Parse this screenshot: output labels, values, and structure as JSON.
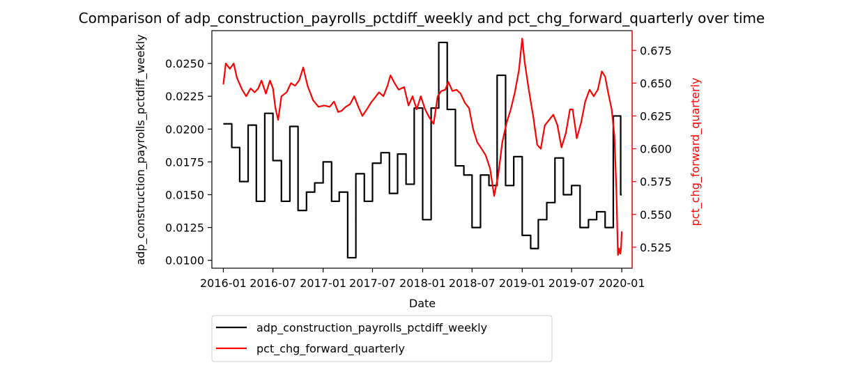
{
  "chart_data": {
    "type": "line",
    "title": "Comparison of adp_construction_payrolls_pctdiff_weekly and pct_chg_forward_quarterly over time",
    "xlabel": "Date",
    "ylabel_left": "adp_construction_payrolls_pctdiff_weekly",
    "ylabel_right": "pct_chg_forward_quarterly",
    "x_ticks": [
      "2016-01",
      "2016-07",
      "2017-01",
      "2017-07",
      "2018-01",
      "2018-07",
      "2019-01",
      "2019-07",
      "2020-01"
    ],
    "y_left_ticks": [
      "0.0100",
      "0.0125",
      "0.0150",
      "0.0175",
      "0.0200",
      "0.0225",
      "0.0250"
    ],
    "y_right_ticks": [
      "0.525",
      "0.550",
      "0.575",
      "0.600",
      "0.625",
      "0.650",
      "0.675"
    ],
    "ylim_left": [
      0.0094,
      0.0275
    ],
    "ylim_right": [
      0.509,
      0.69
    ],
    "xlim": [
      "2015-11-20",
      "2020-02-08"
    ],
    "legend_position": "below",
    "series": [
      {
        "name": "adp_construction_payrolls_pctdiff_weekly",
        "color": "#000000",
        "axis": "left",
        "points": [
          [
            "2016-01-01",
            0.0204
          ],
          [
            "2016-02-01",
            0.0204
          ],
          [
            "2016-02-01",
            0.0186
          ],
          [
            "2016-03-01",
            0.0186
          ],
          [
            "2016-03-01",
            0.016
          ],
          [
            "2016-04-01",
            0.016
          ],
          [
            "2016-04-01",
            0.0203
          ],
          [
            "2016-05-01",
            0.0203
          ],
          [
            "2016-05-01",
            0.0145
          ],
          [
            "2016-06-01",
            0.0145
          ],
          [
            "2016-06-01",
            0.0212
          ],
          [
            "2016-07-01",
            0.0212
          ],
          [
            "2016-07-01",
            0.0176
          ],
          [
            "2016-08-01",
            0.0176
          ],
          [
            "2016-08-01",
            0.0145
          ],
          [
            "2016-09-01",
            0.0145
          ],
          [
            "2016-09-01",
            0.0202
          ],
          [
            "2016-10-01",
            0.0202
          ],
          [
            "2016-10-01",
            0.0138
          ],
          [
            "2016-11-01",
            0.0138
          ],
          [
            "2016-11-01",
            0.0152
          ],
          [
            "2016-12-01",
            0.0152
          ],
          [
            "2016-12-01",
            0.0159
          ],
          [
            "2017-01-01",
            0.0159
          ],
          [
            "2017-01-01",
            0.0175
          ],
          [
            "2017-02-01",
            0.0175
          ],
          [
            "2017-02-01",
            0.0145
          ],
          [
            "2017-03-01",
            0.0145
          ],
          [
            "2017-03-01",
            0.0152
          ],
          [
            "2017-04-01",
            0.0152
          ],
          [
            "2017-04-01",
            0.0102
          ],
          [
            "2017-05-01",
            0.0102
          ],
          [
            "2017-05-01",
            0.0166
          ],
          [
            "2017-06-01",
            0.0166
          ],
          [
            "2017-06-01",
            0.0145
          ],
          [
            "2017-07-01",
            0.0145
          ],
          [
            "2017-07-01",
            0.0174
          ],
          [
            "2017-08-01",
            0.0174
          ],
          [
            "2017-08-01",
            0.0182
          ],
          [
            "2017-09-01",
            0.0182
          ],
          [
            "2017-09-01",
            0.0151
          ],
          [
            "2017-10-01",
            0.0151
          ],
          [
            "2017-10-01",
            0.0181
          ],
          [
            "2017-11-01",
            0.0181
          ],
          [
            "2017-11-01",
            0.0158
          ],
          [
            "2017-12-01",
            0.0158
          ],
          [
            "2017-12-01",
            0.0216
          ],
          [
            "2018-01-01",
            0.0216
          ],
          [
            "2018-01-01",
            0.0131
          ],
          [
            "2018-02-01",
            0.0131
          ],
          [
            "2018-02-01",
            0.0216
          ],
          [
            "2018-03-01",
            0.0216
          ],
          [
            "2018-03-01",
            0.0266
          ],
          [
            "2018-04-01",
            0.0266
          ],
          [
            "2018-04-01",
            0.0215
          ],
          [
            "2018-05-01",
            0.0215
          ],
          [
            "2018-05-01",
            0.0172
          ],
          [
            "2018-06-01",
            0.0172
          ],
          [
            "2018-06-01",
            0.0165
          ],
          [
            "2018-07-01",
            0.0165
          ],
          [
            "2018-07-01",
            0.0125
          ],
          [
            "2018-08-01",
            0.0125
          ],
          [
            "2018-08-01",
            0.0165
          ],
          [
            "2018-09-01",
            0.0165
          ],
          [
            "2018-09-01",
            0.0157
          ],
          [
            "2018-10-01",
            0.0157
          ],
          [
            "2018-10-01",
            0.0241
          ],
          [
            "2018-11-01",
            0.0241
          ],
          [
            "2018-11-01",
            0.0157
          ],
          [
            "2018-12-01",
            0.0157
          ],
          [
            "2018-12-01",
            0.0179
          ],
          [
            "2019-01-01",
            0.0179
          ],
          [
            "2019-01-01",
            0.0119
          ],
          [
            "2019-02-01",
            0.0119
          ],
          [
            "2019-02-01",
            0.0109
          ],
          [
            "2019-03-01",
            0.0109
          ],
          [
            "2019-03-01",
            0.0131
          ],
          [
            "2019-04-01",
            0.0131
          ],
          [
            "2019-04-01",
            0.0144
          ],
          [
            "2019-05-01",
            0.0144
          ],
          [
            "2019-05-01",
            0.0178
          ],
          [
            "2019-06-01",
            0.0178
          ],
          [
            "2019-06-01",
            0.015
          ],
          [
            "2019-07-01",
            0.015
          ],
          [
            "2019-07-01",
            0.0157
          ],
          [
            "2019-08-01",
            0.0157
          ],
          [
            "2019-08-01",
            0.0125
          ],
          [
            "2019-09-01",
            0.0125
          ],
          [
            "2019-09-01",
            0.0131
          ],
          [
            "2019-10-01",
            0.0131
          ],
          [
            "2019-10-01",
            0.0137
          ],
          [
            "2019-11-01",
            0.0137
          ],
          [
            "2019-11-01",
            0.0125
          ],
          [
            "2019-12-01",
            0.0125
          ],
          [
            "2019-12-01",
            0.021
          ],
          [
            "2019-12-28",
            0.021
          ],
          [
            "2019-12-28",
            0.015
          ],
          [
            "2020-01-01",
            0.015
          ]
        ]
      },
      {
        "name": "pct_chg_forward_quarterly",
        "color": "#ff0000",
        "axis": "right",
        "points": [
          [
            "2016-01-01",
            0.649
          ],
          [
            "2016-01-10",
            0.665
          ],
          [
            "2016-01-25",
            0.661
          ],
          [
            "2016-02-08",
            0.665
          ],
          [
            "2016-02-20",
            0.654
          ],
          [
            "2016-03-10",
            0.645
          ],
          [
            "2016-03-25",
            0.64
          ],
          [
            "2016-04-10",
            0.646
          ],
          [
            "2016-04-25",
            0.643
          ],
          [
            "2016-05-08",
            0.646
          ],
          [
            "2016-05-20",
            0.652
          ],
          [
            "2016-06-05",
            0.642
          ],
          [
            "2016-06-20",
            0.652
          ],
          [
            "2016-07-01",
            0.646
          ],
          [
            "2016-07-10",
            0.631
          ],
          [
            "2016-07-20",
            0.622
          ],
          [
            "2016-08-01",
            0.64
          ],
          [
            "2016-08-20",
            0.643
          ],
          [
            "2016-09-05",
            0.65
          ],
          [
            "2016-09-20",
            0.648
          ],
          [
            "2016-10-05",
            0.652
          ],
          [
            "2016-10-20",
            0.662
          ],
          [
            "2016-11-05",
            0.648
          ],
          [
            "2016-11-25",
            0.637
          ],
          [
            "2016-12-15",
            0.632
          ],
          [
            "2017-01-05",
            0.633
          ],
          [
            "2017-01-25",
            0.632
          ],
          [
            "2017-02-10",
            0.636
          ],
          [
            "2017-02-25",
            0.628
          ],
          [
            "2017-03-10",
            0.629
          ],
          [
            "2017-03-25",
            0.632
          ],
          [
            "2017-04-10",
            0.634
          ],
          [
            "2017-04-25",
            0.64
          ],
          [
            "2017-05-10",
            0.632
          ],
          [
            "2017-05-25",
            0.625
          ],
          [
            "2017-06-10",
            0.63
          ],
          [
            "2017-06-25",
            0.635
          ],
          [
            "2017-07-10",
            0.639
          ],
          [
            "2017-07-25",
            0.643
          ],
          [
            "2017-08-10",
            0.64
          ],
          [
            "2017-08-25",
            0.648
          ],
          [
            "2017-09-05",
            0.656
          ],
          [
            "2017-09-20",
            0.65
          ],
          [
            "2017-10-05",
            0.645
          ],
          [
            "2017-10-25",
            0.647
          ],
          [
            "2017-11-10",
            0.633
          ],
          [
            "2017-11-25",
            0.64
          ],
          [
            "2017-12-10",
            0.63
          ],
          [
            "2017-12-25",
            0.64
          ],
          [
            "2018-01-10",
            0.63
          ],
          [
            "2018-01-25",
            0.624
          ],
          [
            "2018-02-10",
            0.619
          ],
          [
            "2018-02-25",
            0.64
          ],
          [
            "2018-03-10",
            0.644
          ],
          [
            "2018-03-25",
            0.645
          ],
          [
            "2018-04-05",
            0.651
          ],
          [
            "2018-04-20",
            0.644
          ],
          [
            "2018-05-05",
            0.645
          ],
          [
            "2018-05-20",
            0.642
          ],
          [
            "2018-06-05",
            0.635
          ],
          [
            "2018-06-20",
            0.631
          ],
          [
            "2018-07-05",
            0.615
          ],
          [
            "2018-07-20",
            0.605
          ],
          [
            "2018-08-05",
            0.6
          ],
          [
            "2018-08-20",
            0.595
          ],
          [
            "2018-09-05",
            0.585
          ],
          [
            "2018-09-20",
            0.564
          ],
          [
            "2018-10-05",
            0.58
          ],
          [
            "2018-10-20",
            0.605
          ],
          [
            "2018-11-05",
            0.62
          ],
          [
            "2018-11-20",
            0.63
          ],
          [
            "2018-12-05",
            0.643
          ],
          [
            "2018-12-20",
            0.66
          ],
          [
            "2019-01-01",
            0.684
          ],
          [
            "2019-01-10",
            0.666
          ],
          [
            "2019-01-25",
            0.645
          ],
          [
            "2019-02-10",
            0.625
          ],
          [
            "2019-02-25",
            0.603
          ],
          [
            "2019-03-10",
            0.6
          ],
          [
            "2019-03-25",
            0.618
          ],
          [
            "2019-04-10",
            0.622
          ],
          [
            "2019-04-25",
            0.626
          ],
          [
            "2019-05-10",
            0.618
          ],
          [
            "2019-05-25",
            0.601
          ],
          [
            "2019-06-10",
            0.612
          ],
          [
            "2019-06-25",
            0.63
          ],
          [
            "2019-07-05",
            0.63
          ],
          [
            "2019-07-20",
            0.608
          ],
          [
            "2019-08-05",
            0.62
          ],
          [
            "2019-08-20",
            0.636
          ],
          [
            "2019-09-05",
            0.645
          ],
          [
            "2019-09-20",
            0.64
          ],
          [
            "2019-10-05",
            0.645
          ],
          [
            "2019-10-20",
            0.659
          ],
          [
            "2019-11-01",
            0.655
          ],
          [
            "2019-11-10",
            0.645
          ],
          [
            "2019-11-25",
            0.63
          ],
          [
            "2019-12-05",
            0.61
          ],
          [
            "2019-12-12",
            0.57
          ],
          [
            "2019-12-18",
            0.519
          ],
          [
            "2019-12-22",
            0.524
          ],
          [
            "2019-12-26",
            0.52
          ],
          [
            "2019-12-29",
            0.523
          ],
          [
            "2020-01-01",
            0.537
          ]
        ]
      }
    ]
  }
}
